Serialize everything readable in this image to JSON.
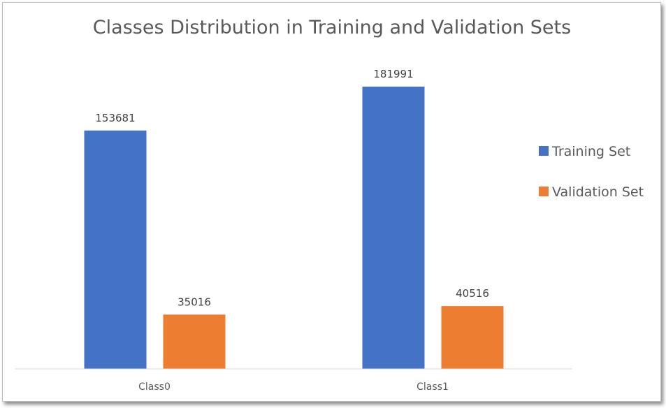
{
  "chart_data": {
    "type": "bar",
    "title": "Classes Distribution in Training and Validation Sets",
    "categories": [
      "Class0",
      "Class1"
    ],
    "series": [
      {
        "name": "Training Set",
        "values": [
          153681,
          181991
        ],
        "color": "#4472C4"
      },
      {
        "name": "Validation Set",
        "values": [
          35016,
          40516
        ],
        "color": "#ED7D31"
      }
    ],
    "ylim": [
      0,
      200000
    ],
    "grid": false,
    "legend_position": "right",
    "data_labels": true
  }
}
